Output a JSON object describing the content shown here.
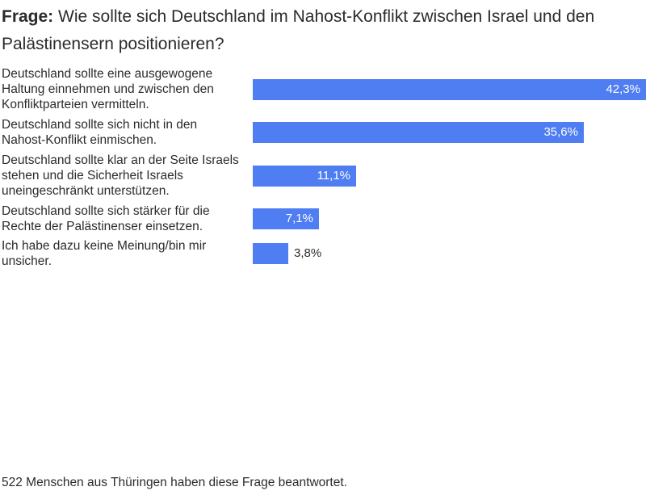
{
  "title": {
    "prefix": "Frage:",
    "text": " Wie sollte sich Deutschland im Nahost-Konflikt zwischen Israel und den Palästinensern positionieren?"
  },
  "chart_data": {
    "type": "bar",
    "orientation": "horizontal",
    "categories": [
      "Deutschland sollte eine ausgewogene Haltung einnehmen und zwischen den Konfliktparteien vermitteln.",
      "Deutschland sollte sich nicht in den Nahost-Konflikt einmischen.",
      "Deutschland sollte klar an der Seite Israels stehen und die Sicherheit Israels uneingeschränkt unterstützen.",
      "Deutschland sollte sich stärker für die Rechte der Palästinenser einsetzen.",
      "Ich habe dazu keine Meinung/bin mir unsicher."
    ],
    "values": [
      42.3,
      35.6,
      11.1,
      7.1,
      3.8
    ],
    "value_labels": [
      "42,3%",
      "35,6%",
      "11,1%",
      "7,1%",
      "3,8%"
    ],
    "xlim": [
      0,
      42.3
    ],
    "bar_color": "#4f7df2",
    "grid": false
  },
  "footer": "522 Menschen aus Thüringen haben diese Frage beantwortet."
}
